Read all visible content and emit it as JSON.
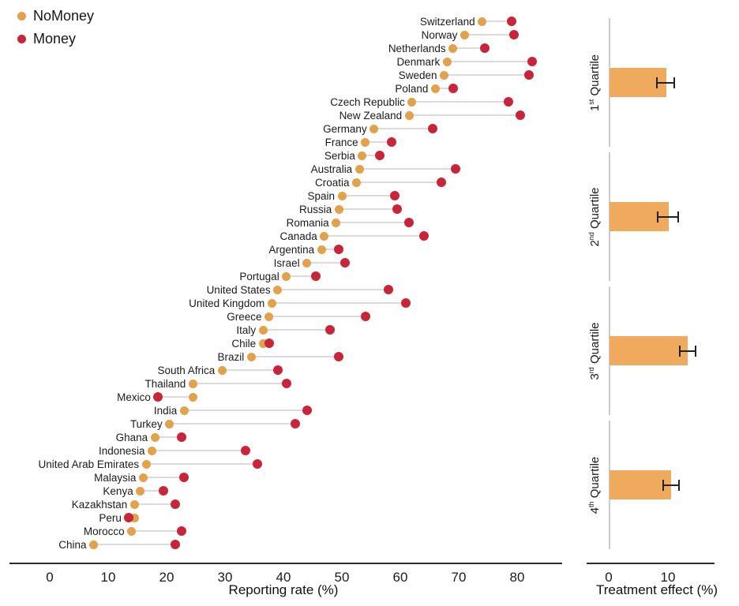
{
  "legend": {
    "items": [
      {
        "label": "NoMoney",
        "color": "#E2A14B"
      },
      {
        "label": "Money",
        "color": "#C8243A"
      }
    ]
  },
  "colors": {
    "nomoney_dot": "#E2A14B",
    "money_dot": "#C8243A",
    "quartile_bar": "#EFAA5E",
    "connector": "#DBDBDB",
    "axis": "#2E2E2E",
    "section_line": "#CBCBCB",
    "error_bar": "#232323",
    "text": "#1B1B1B"
  },
  "chart_data": [
    {
      "type": "scatter",
      "subtype": "dumbbell",
      "title": "",
      "xlabel": "Reporting rate (%)",
      "ylabel": "",
      "xlim": [
        0,
        88
      ],
      "xticks": [
        0,
        10,
        20,
        30,
        40,
        50,
        60,
        70,
        80
      ],
      "grid": false,
      "legend_position": "top-left",
      "categories": [
        "Switzerland",
        "Norway",
        "Netherlands",
        "Denmark",
        "Sweden",
        "Poland",
        "Czech Republic",
        "New Zealand",
        "Germany",
        "France",
        "Serbia",
        "Australia",
        "Croatia",
        "Spain",
        "Russia",
        "Romania",
        "Canada",
        "Argentina",
        "Israel",
        "Portugal",
        "United States",
        "United Kingdom",
        "Greece",
        "Italy",
        "Chile",
        "Brazil",
        "South Africa",
        "Thailand",
        "Mexico",
        "India",
        "Turkey",
        "Ghana",
        "Indonesia",
        "United Arab Emirates",
        "Malaysia",
        "Kenya",
        "Kazakhstan",
        "Peru",
        "Morocco",
        "China"
      ],
      "series": [
        {
          "name": "NoMoney",
          "color": "#E2A14B",
          "values": [
            74,
            71,
            69,
            68,
            67.5,
            66,
            62,
            61.5,
            55.5,
            54,
            53.5,
            53,
            52.5,
            50,
            49.5,
            49,
            47,
            46.5,
            44,
            40.5,
            39,
            38,
            37.5,
            36.5,
            36.5,
            34.5,
            29.5,
            24.5,
            24.5,
            23,
            20.5,
            18,
            17.5,
            16.5,
            16,
            15.5,
            14.5,
            14.5,
            14,
            7.5
          ]
        },
        {
          "name": "Money",
          "color": "#C8243A",
          "values": [
            79,
            79.5,
            74.5,
            82.5,
            82,
            69,
            78.5,
            80.5,
            65.5,
            58.5,
            56.5,
            69.5,
            67,
            59,
            59.5,
            61.5,
            64,
            49.5,
            50.5,
            45.5,
            58,
            61,
            54,
            48,
            37.5,
            49.5,
            39,
            40.5,
            18.5,
            44,
            42,
            22.5,
            33.5,
            35.5,
            23,
            19.5,
            21.5,
            13.5,
            22.5,
            21.5
          ]
        }
      ]
    },
    {
      "type": "bar",
      "orientation": "horizontal",
      "title": "",
      "xlabel": "Treatment effect (%)",
      "ylabel": "",
      "xlim": [
        0,
        20
      ],
      "xticks": [
        0,
        10
      ],
      "bar_color": "#EFAA5E",
      "error_bars": true,
      "categories": [
        "1st Quartile",
        "2nd Quartile",
        "3rd Quartile",
        "4th Quartile"
      ],
      "quartiles": [
        {
          "ordinal": "1",
          "suffix": "st",
          "word": "Quartile",
          "value": 9.6,
          "ci_low": 8.1,
          "ci_high": 11.0
        },
        {
          "ordinal": "2",
          "suffix": "nd",
          "word": "Quartile",
          "value": 10.0,
          "ci_low": 8.3,
          "ci_high": 11.7
        },
        {
          "ordinal": "3",
          "suffix": "rd",
          "word": "Quartile",
          "value": 13.3,
          "ci_low": 12.0,
          "ci_high": 14.7
        },
        {
          "ordinal": "4",
          "suffix": "th",
          "word": "Quartile",
          "value": 10.4,
          "ci_low": 9.2,
          "ci_high": 11.9
        }
      ]
    }
  ]
}
